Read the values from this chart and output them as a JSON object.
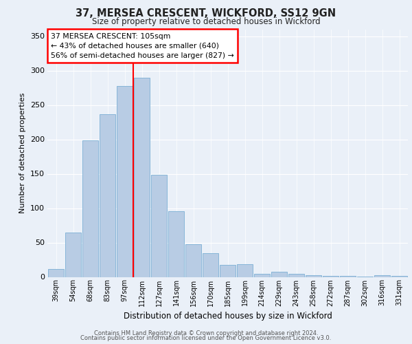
{
  "title1": "37, MERSEA CRESCENT, WICKFORD, SS12 9GN",
  "title2": "Size of property relative to detached houses in Wickford",
  "xlabel": "Distribution of detached houses by size in Wickford",
  "ylabel": "Number of detached properties",
  "categories": [
    "39sqm",
    "54sqm",
    "68sqm",
    "83sqm",
    "97sqm",
    "112sqm",
    "127sqm",
    "141sqm",
    "156sqm",
    "170sqm",
    "185sqm",
    "199sqm",
    "214sqm",
    "229sqm",
    "243sqm",
    "258sqm",
    "272sqm",
    "287sqm",
    "302sqm",
    "316sqm",
    "331sqm"
  ],
  "values": [
    12,
    65,
    199,
    237,
    278,
    290,
    149,
    96,
    48,
    35,
    18,
    19,
    5,
    8,
    5,
    3,
    2,
    2,
    1,
    3,
    2
  ],
  "bar_color": "#b8cce4",
  "bar_edge_color": "#7bafd4",
  "vline_x": 4.5,
  "annotation_text": "37 MERSEA CRESCENT: 105sqm\n← 43% of detached houses are smaller (640)\n56% of semi-detached houses are larger (827) →",
  "annotation_box_color": "white",
  "annotation_box_edge": "red",
  "vline_color": "red",
  "bg_color": "#eaf0f8",
  "plot_bg_color": "#eaf0f8",
  "ylim": [
    0,
    360
  ],
  "yticks": [
    0,
    50,
    100,
    150,
    200,
    250,
    300,
    350
  ],
  "footer1": "Contains HM Land Registry data © Crown copyright and database right 2024.",
  "footer2": "Contains public sector information licensed under the Open Government Licence v3.0."
}
